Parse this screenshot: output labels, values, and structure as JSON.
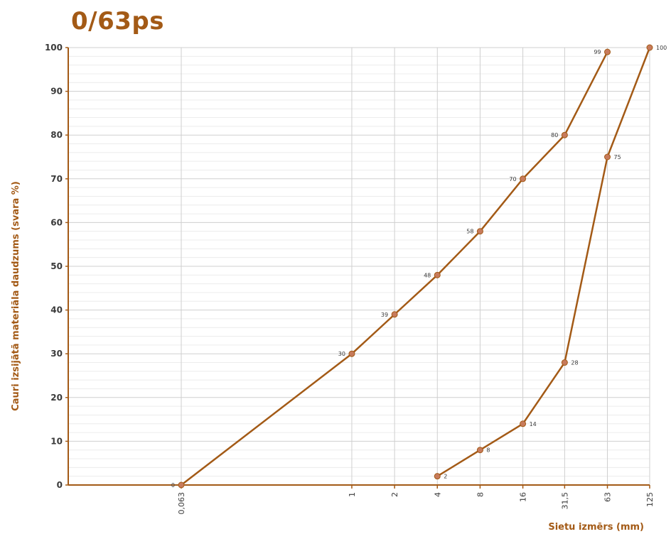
{
  "chart_data": {
    "type": "line",
    "title": "0/63ps",
    "xlabel": "Sietu izmērs (mm)",
    "ylabel": "Cauri izsijātā materiāla daudzums (svara %)",
    "categories": [
      "0,063",
      "1",
      "2",
      "4",
      "8",
      "16",
      "31,5",
      "63",
      "125"
    ],
    "category_values": [
      0.063,
      1,
      2,
      4,
      8,
      16,
      31.5,
      63,
      125
    ],
    "ylim": [
      0,
      100
    ],
    "yticks": [
      0,
      10,
      20,
      30,
      40,
      50,
      60,
      70,
      80,
      90,
      100
    ],
    "x_scale": "log",
    "grid": true,
    "colors": {
      "line": "#a35a16",
      "marker": "#c77b5c",
      "grid": "#cfcfcf",
      "axis": "#a35a16"
    },
    "series": [
      {
        "x": [
          "0,063",
          "1",
          "2",
          "4",
          "8",
          "16",
          "31,5",
          "63"
        ],
        "values": [
          0,
          30,
          39,
          48,
          58,
          70,
          80,
          99
        ],
        "labels": [
          "0",
          "30",
          "39",
          "48",
          "58",
          "70",
          "80",
          "99"
        ]
      },
      {
        "x": [
          "4",
          "8",
          "16",
          "31,5",
          "63",
          "125"
        ],
        "values": [
          2,
          8,
          14,
          28,
          75,
          100
        ],
        "labels": [
          "2",
          "8",
          "14",
          "28",
          "75",
          "100"
        ]
      }
    ]
  }
}
